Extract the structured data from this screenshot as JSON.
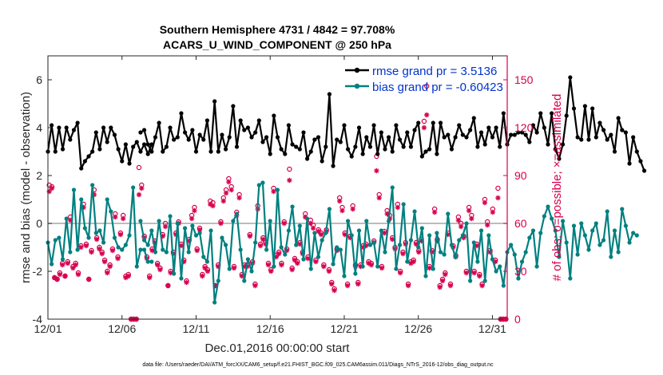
{
  "chart_data": {
    "type": "line",
    "title_line1": "Southern Hemisphere 4731 / 4842 = 97.708%",
    "title_line2": "ACARS_U_WIND_COMPONENT @ 250 hPa",
    "xlabel": "Dec.01,2016 00:00:00 start",
    "ylabel_left": "rmse and bias (model - observation)",
    "ylabel_right": "# of obs: o=possible; ×=assimilated",
    "footnote": "data file: /Users/raeder/DAI/ATM_forcXX/CAM6_setup/f.e21.FHIST_BGC.f09_025.CAM6assim.011/Diags_NTrS_2016-12/obs_diag_output.nc",
    "xlim": [
      0,
      31
    ],
    "ylim_left": [
      -4,
      7
    ],
    "ylim_right": [
      0,
      165
    ],
    "x_ticks": [
      0,
      5,
      10,
      15,
      20,
      25,
      30
    ],
    "x_tick_labels": [
      "12/01",
      "12/06",
      "12/11",
      "12/16",
      "12/21",
      "12/26",
      "12/31"
    ],
    "y_ticks_left": [
      -4,
      -2,
      0,
      2,
      4,
      6
    ],
    "y_tick_labels_left": [
      "-4",
      "-2",
      "0",
      "2",
      "4",
      "6"
    ],
    "y_ticks_right": [
      0,
      30,
      60,
      90,
      120,
      150
    ],
    "y_tick_labels_right": [
      "0",
      "30",
      "60",
      "90",
      "120",
      "150"
    ],
    "legend": {
      "rmse_label": "rmse grand pr = 3.5136",
      "bias_label": "bias grand pr = -0.60423",
      "position": "top-right"
    },
    "colors": {
      "rmse": "#000000",
      "bias": "#008080",
      "obs": "#d6004d",
      "zero_line": "#a6a6a6",
      "legend_text": "#0033cc"
    },
    "series": [
      {
        "name": "rmse",
        "axis": "left",
        "segments": [
          {
            "x0": 0.0,
            "values": [
              3.0,
              4.1,
              3.0,
              4.0,
              3.1,
              4.0,
              3.5,
              3.9,
              4.2,
              2.3,
              2.6,
              2.8,
              3.0,
              3.8,
              3.1,
              4.0,
              3.4,
              4.0,
              3.7,
              3.1,
              2.6,
              3.3,
              2.5,
              3.2,
              3.4,
              3.0,
              3.3,
              2.9,
              3.3
            ]
          },
          {
            "x0": 6.25,
            "values": [
              3.8,
              3.9,
              3.3,
              3.0,
              3.6,
              4.2,
              3.0,
              3.2,
              4.0,
              3.5,
              3.6,
              4.6,
              3.8,
              3.5,
              3.9,
              3.0,
              3.7,
              3.5,
              4.3,
              3.0,
              5.1,
              3.0,
              3.7,
              3.1,
              3.6,
              4.9,
              3.2,
              4.3,
              3.9,
              4.0,
              3.6,
              3.8,
              4.3,
              3.4,
              3.6,
              2.9,
              4.5,
              3.6,
              3.1,
              2.9,
              4.1,
              3.3,
              3.2,
              3.1,
              3.8,
              2.7,
              3.0,
              3.5,
              3.6,
              2.6,
              3.2,
              5.4,
              2.4,
              3.5,
              3.4,
              4.1,
              3.1,
              2.8,
              3.2,
              4.0,
              2.9,
              3.6,
              3.2,
              4.1,
              2.9,
              3.8,
              3.1,
              3.6,
              3.0,
              4.1,
              3.5,
              3.2,
              3.8,
              3.2,
              3.9,
              4.2,
              2.8,
              3.0,
              3.1,
              4.2,
              2.9,
              4.2,
              3.6,
              3.7,
              3.1,
              3.6,
              4.1,
              3.7,
              3.6,
              3.9,
              4.4,
              3.2,
              3.8,
              3.3,
              4.0,
              3.6,
              4.0,
              3.2,
              4.6,
              3.3,
              3.7,
              3.7,
              3.8,
              3.8,
              3.7,
              3.4,
              4.1,
              3.8,
              4.6,
              4.0,
              3.3,
              4.6,
              3.1,
              2.7,
              3.3,
              4.5,
              6.1,
              4.8,
              3.6,
              3.5,
              4.9,
              3.5,
              4.8,
              3.6,
              4.2,
              3.9,
              3.5,
              3.7,
              3.0,
              4.4,
              3.9,
              3.8,
              2.5,
              3.6,
              3.0,
              2.6,
              2.2
            ]
          }
        ]
      },
      {
        "name": "bias",
        "axis": "left",
        "segments": [
          {
            "x0": 0.0,
            "values": [
              -0.8,
              -1.7,
              -0.7,
              -0.6,
              -1.5,
              0.2,
              -1.2,
              1.4,
              -1.1,
              1.0,
              -0.2,
              -0.6,
              1.6,
              -0.4,
              -0.3,
              -0.8,
              1.0,
              0.5,
              -0.6,
              -1.0,
              -1.1,
              -0.9,
              -0.5,
              1.5,
              -1.8,
              -1.1,
              -1.1,
              -1.6,
              -1.6
            ]
          },
          {
            "x0": 6.25,
            "values": [
              0.1,
              -0.7,
              -0.9,
              -0.3,
              -1.2,
              0.1,
              -1.1,
              -1.2,
              0.3,
              -2.1,
              0.0,
              -2.3,
              -0.2,
              -1.2,
              -0.1,
              -0.5,
              -0.4,
              -1.4,
              -1.6,
              -0.3,
              -3.3,
              -2.4,
              -0.6,
              -0.9,
              -1.9,
              0.1,
              0.4,
              -1.1,
              -2.4,
              -1.5,
              -2.0,
              -0.8,
              1.6,
              1.7,
              -1.1,
              0.1,
              -1.8,
              1.4,
              -1.0,
              -1.3,
              -0.3,
              0.7,
              -0.9,
              -0.1,
              -1.5,
              0.2,
              -1.9,
              -0.4,
              -1.4,
              -0.7,
              -0.4,
              0.6,
              -1.7,
              -1.0,
              -1.1,
              -2.2,
              0.1,
              -0.5,
              -2.1,
              -0.3,
              -1.8,
              0.1,
              -0.9,
              -0.8,
              -1.8,
              -0.3,
              -1.2,
              0.1,
              1.5,
              -1.9,
              -0.9,
              0.8,
              -1.6,
              -0.7,
              0.5,
              -1.0,
              -0.2,
              -2.2,
              -0.5,
              -1.9,
              -0.4,
              -1.2,
              -1.3,
              0.4,
              -0.9,
              -1.4,
              -0.7,
              -0.5,
              0.0,
              -2.4,
              -0.8,
              -1.6,
              -0.3,
              -2.4,
              -0.5,
              -1.5,
              -2.0,
              -1.8,
              -2.6,
              -1.2,
              -0.9,
              -1.3,
              -2.3,
              -1.6,
              -1.2,
              -0.6,
              -0.3,
              -1.8,
              -0.4,
              0.3,
              0.7,
              0.2,
              -0.3,
              -1.4,
              0.1,
              -0.8,
              -2.3,
              -0.1,
              -1.3,
              0.0,
              -0.5,
              -1.1,
              -0.3,
              0.0,
              -0.9,
              -0.7,
              0.5,
              -1.4,
              -0.3,
              -1.2,
              0.6,
              -0.1,
              -0.8,
              -0.4,
              -0.5
            ]
          }
        ]
      }
    ],
    "obs_possible_values": [
      84,
      83,
      26,
      25,
      29,
      35,
      27,
      36,
      64,
      33,
      35,
      29,
      46,
      72,
      47,
      25,
      43,
      81,
      51,
      45,
      42,
      37,
      30,
      34,
      44,
      66,
      39,
      54,
      65,
      27,
      28,
      0,
      0,
      0,
      95,
      84,
      52,
      39,
      27,
      44,
      49,
      35,
      32,
      53,
      60,
      21,
      30,
      42,
      54,
      61,
      47,
      37,
      24,
      50,
      65,
      70,
      44,
      57,
      28,
      33,
      31,
      74,
      73,
      21,
      34,
      61,
      76,
      81,
      88,
      83,
      33,
      67,
      78,
      28,
      34,
      34,
      53,
      36,
      22,
      71,
      47,
      51,
      48,
      35,
      31,
      82,
      40,
      42,
      35,
      61,
      44,
      94,
      32,
      38,
      36,
      48,
      42,
      66,
      39,
      62,
      59,
      37,
      56,
      54,
      34,
      56,
      31,
      23,
      19,
      44,
      76,
      70,
      54,
      22,
      52,
      71,
      34,
      23,
      34,
      46,
      47,
      36,
      35,
      49,
      102,
      78,
      33,
      55,
      68,
      65,
      51,
      45,
      72,
      30,
      42,
      48,
      22,
      36,
      37,
      48,
      43,
      50,
      124,
      146,
      33,
      43,
      69,
      50,
      21,
      25,
      29,
      54,
      22,
      46,
      40,
      64,
      60,
      52,
      30,
      70,
      65,
      30,
      47,
      28,
      22,
      75,
      61,
      43,
      69,
      37,
      82,
      0,
      0,
      0
    ],
    "obs_assimilated_values": [
      80,
      82,
      26,
      25,
      28,
      34,
      27,
      35,
      62,
      32,
      34,
      28,
      45,
      70,
      46,
      25,
      42,
      78,
      50,
      44,
      41,
      36,
      29,
      33,
      43,
      64,
      38,
      53,
      63,
      26,
      27,
      0,
      0,
      0,
      78,
      82,
      51,
      38,
      26,
      43,
      48,
      34,
      31,
      52,
      58,
      21,
      29,
      41,
      53,
      60,
      46,
      36,
      23,
      49,
      63,
      68,
      43,
      56,
      27,
      32,
      30,
      72,
      71,
      21,
      33,
      60,
      74,
      79,
      86,
      81,
      32,
      65,
      76,
      27,
      33,
      33,
      52,
      35,
      21,
      69,
      46,
      50,
      47,
      34,
      30,
      80,
      39,
      41,
      34,
      60,
      43,
      87,
      31,
      37,
      35,
      47,
      41,
      64,
      38,
      60,
      57,
      36,
      55,
      53,
      33,
      55,
      30,
      22,
      18,
      43,
      74,
      68,
      53,
      21,
      51,
      69,
      33,
      22,
      33,
      45,
      46,
      35,
      34,
      48,
      93,
      76,
      32,
      54,
      66,
      63,
      50,
      44,
      70,
      29,
      41,
      47,
      21,
      35,
      36,
      47,
      42,
      49,
      120,
      128,
      32,
      42,
      67,
      49,
      20,
      24,
      28,
      53,
      21,
      45,
      39,
      62,
      58,
      51,
      29,
      68,
      63,
      29,
      46,
      27,
      21,
      73,
      59,
      42,
      67,
      36,
      76,
      0,
      0,
      0
    ]
  }
}
